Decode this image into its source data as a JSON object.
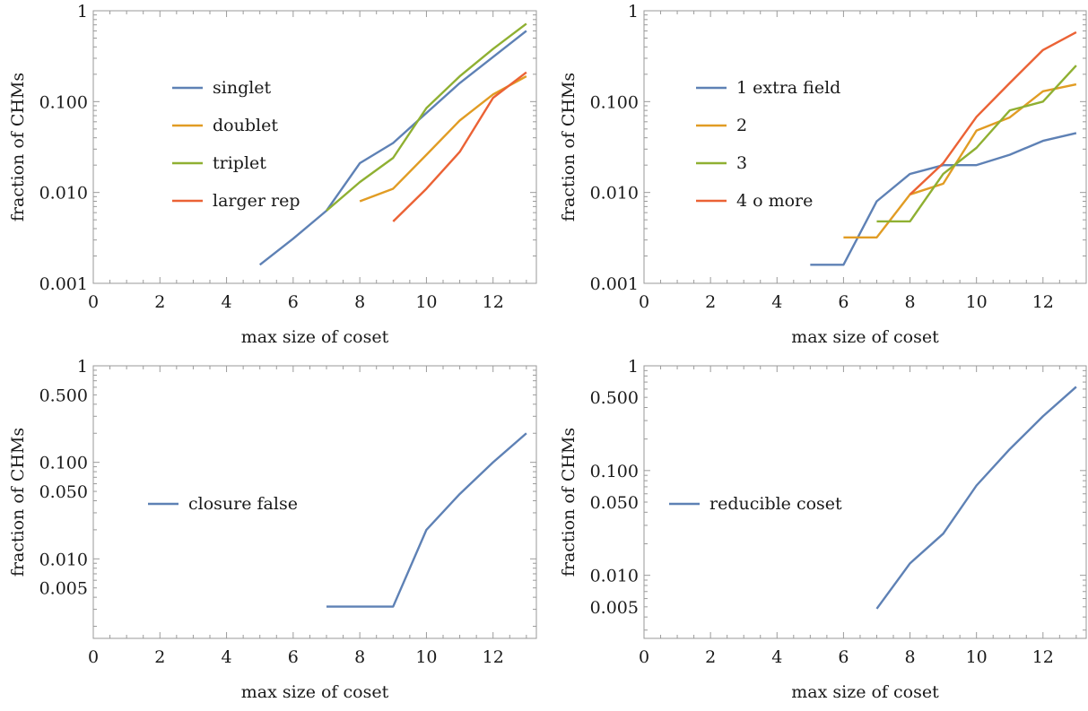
{
  "chart_data": [
    {
      "type": "line",
      "xlabel": "max size of coset",
      "ylabel": "fraction of CHMs",
      "xlim": [
        0,
        13.3
      ],
      "ylim": [
        0.001,
        1
      ],
      "yscale": "log",
      "xticks": [
        0,
        2,
        4,
        6,
        8,
        10,
        12
      ],
      "yticks": [
        {
          "value": 0.001,
          "label": "0.001"
        },
        {
          "value": 0.01,
          "label": "0.010"
        },
        {
          "value": 0.1,
          "label": "0.100"
        },
        {
          "value": 1,
          "label": "1"
        }
      ],
      "legend_position": "left",
      "series": [
        {
          "name": "singlet",
          "color": "#5E81B5",
          "x": [
            5,
            6,
            7,
            8,
            9,
            10,
            11,
            12,
            13
          ],
          "y": [
            0.0016,
            0.0031,
            0.0063,
            0.021,
            0.035,
            0.075,
            0.16,
            0.31,
            0.6
          ]
        },
        {
          "name": "doublet",
          "color": "#E19C24",
          "x": [
            8,
            9,
            10,
            11,
            12,
            13
          ],
          "y": [
            0.008,
            0.011,
            0.026,
            0.062,
            0.12,
            0.19
          ]
        },
        {
          "name": "triplet",
          "color": "#8FB032",
          "x": [
            7,
            8,
            9,
            10,
            11,
            12,
            13
          ],
          "y": [
            0.0063,
            0.013,
            0.024,
            0.085,
            0.19,
            0.38,
            0.72
          ]
        },
        {
          "name": "larger rep",
          "color": "#EB6235",
          "x": [
            9,
            10,
            11,
            12,
            13
          ],
          "y": [
            0.0048,
            0.011,
            0.028,
            0.11,
            0.21
          ]
        }
      ]
    },
    {
      "type": "line",
      "xlabel": "max size of coset",
      "ylabel": "fraction of CHMs",
      "xlim": [
        0,
        13.3
      ],
      "ylim": [
        0.001,
        1
      ],
      "yscale": "log",
      "xticks": [
        0,
        2,
        4,
        6,
        8,
        10,
        12
      ],
      "yticks": [
        {
          "value": 0.001,
          "label": "0.001"
        },
        {
          "value": 0.01,
          "label": "0.010"
        },
        {
          "value": 0.1,
          "label": "0.100"
        },
        {
          "value": 1,
          "label": "1"
        }
      ],
      "legend_position": "left",
      "series": [
        {
          "name": "1 extra field",
          "color": "#5E81B5",
          "x": [
            5,
            6,
            7,
            8,
            9,
            10,
            11,
            12,
            13
          ],
          "y": [
            0.0016,
            0.0016,
            0.008,
            0.016,
            0.02,
            0.02,
            0.026,
            0.037,
            0.045
          ]
        },
        {
          "name": "2",
          "color": "#E19C24",
          "x": [
            6,
            7,
            8,
            9,
            10,
            11,
            12,
            13
          ],
          "y": [
            0.0032,
            0.0032,
            0.0095,
            0.0125,
            0.048,
            0.067,
            0.13,
            0.155
          ]
        },
        {
          "name": "3",
          "color": "#8FB032",
          "x": [
            7,
            8,
            9,
            10,
            11,
            12,
            13
          ],
          "y": [
            0.0048,
            0.0048,
            0.016,
            0.031,
            0.08,
            0.1,
            0.25
          ]
        },
        {
          "name": "4 o more",
          "color": "#EB6235",
          "x": [
            8,
            9,
            10,
            11,
            12,
            13
          ],
          "y": [
            0.0095,
            0.021,
            0.068,
            0.16,
            0.37,
            0.58
          ]
        }
      ]
    },
    {
      "type": "line",
      "xlabel": "max size of coset",
      "ylabel": "fraction of CHMs",
      "xlim": [
        0,
        13.3
      ],
      "ylim": [
        0.0015,
        1
      ],
      "yscale": "log",
      "xticks": [
        0,
        2,
        4,
        6,
        8,
        10,
        12
      ],
      "yticks": [
        {
          "value": 0.005,
          "label": "0.005"
        },
        {
          "value": 0.01,
          "label": "0.010"
        },
        {
          "value": 0.05,
          "label": "0.050"
        },
        {
          "value": 0.1,
          "label": "0.100"
        },
        {
          "value": 0.5,
          "label": "0.500"
        },
        {
          "value": 1,
          "label": "1"
        }
      ],
      "legend_position": "left",
      "series": [
        {
          "name": "closure false",
          "color": "#5E81B5",
          "x": [
            7,
            8,
            9,
            10,
            11,
            12,
            13
          ],
          "y": [
            0.0032,
            0.0032,
            0.0032,
            0.02,
            0.047,
            0.1,
            0.2
          ]
        }
      ]
    },
    {
      "type": "line",
      "xlabel": "max size of coset",
      "ylabel": "fraction of CHMs",
      "xlim": [
        0,
        13.3
      ],
      "ylim": [
        0.0025,
        1
      ],
      "yscale": "log",
      "xticks": [
        0,
        2,
        4,
        6,
        8,
        10,
        12
      ],
      "yticks": [
        {
          "value": 0.005,
          "label": "0.005"
        },
        {
          "value": 0.01,
          "label": "0.010"
        },
        {
          "value": 0.05,
          "label": "0.050"
        },
        {
          "value": 0.1,
          "label": "0.100"
        },
        {
          "value": 0.5,
          "label": "0.500"
        },
        {
          "value": 1,
          "label": "1"
        }
      ],
      "legend_position": "left",
      "series": [
        {
          "name": "reducible coset",
          "color": "#5E81B5",
          "x": [
            7,
            8,
            9,
            10,
            11,
            12,
            13
          ],
          "y": [
            0.0048,
            0.013,
            0.025,
            0.072,
            0.16,
            0.33,
            0.63
          ]
        }
      ]
    }
  ]
}
